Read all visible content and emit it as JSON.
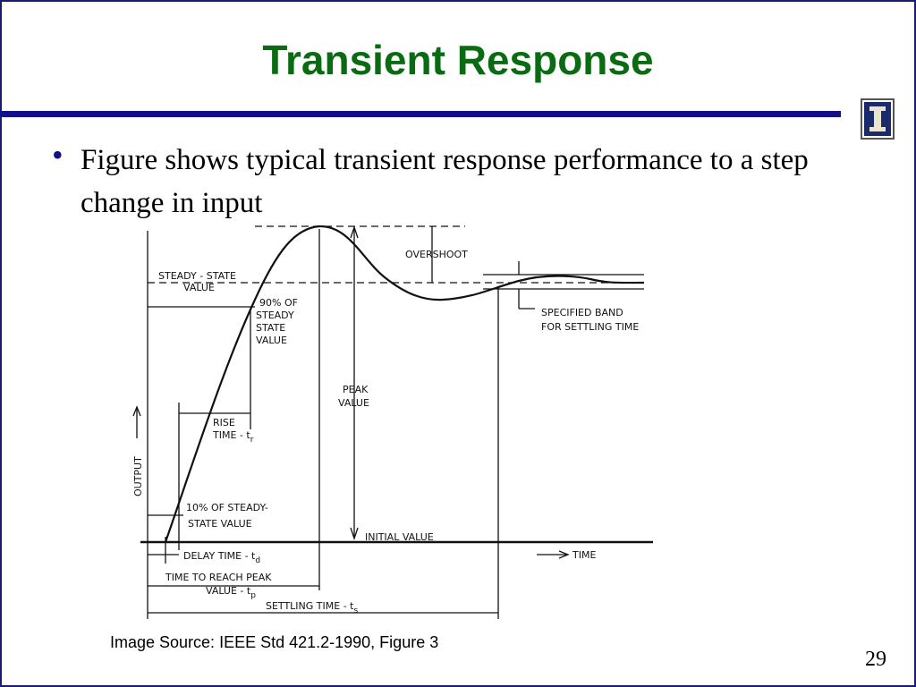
{
  "header": {
    "title": "Transient Response"
  },
  "bullets": [
    "Figure shows typical transient response performance to a step change in input"
  ],
  "figure": {
    "labels": {
      "steady_state": [
        "STEADY - STATE",
        "VALUE"
      ],
      "ninety_percent": [
        "90% OF",
        "STEADY",
        "STATE",
        "VALUE"
      ],
      "overshoot": "OVERSHOOT",
      "settling_band": [
        "SPECIFIED  BAND",
        "FOR  SETTLING  TIME"
      ],
      "peak_value": [
        "PEAK",
        "VALUE"
      ],
      "rise_time": {
        "lines": [
          "RISE",
          "TIME - t"
        ],
        "sub": "r"
      },
      "output": "OUTPUT",
      "ten_percent": [
        "10% OF STEADY-",
        "STATE  VALUE"
      ],
      "initial_value": "INITIAL VALUE",
      "delay_time": {
        "text": "DELAY  TIME - t",
        "sub": "d"
      },
      "time": "TIME",
      "peak_time": {
        "lines": [
          "TIME  TO  REACH  PEAK",
          "VALUE - t"
        ],
        "sub": "p"
      },
      "settling_time": {
        "text": "SETTLING  TIME - t",
        "sub": "s"
      }
    }
  },
  "source": "Image Source: IEEE Std 421.2-1990, Figure 3",
  "page_number": 29
}
